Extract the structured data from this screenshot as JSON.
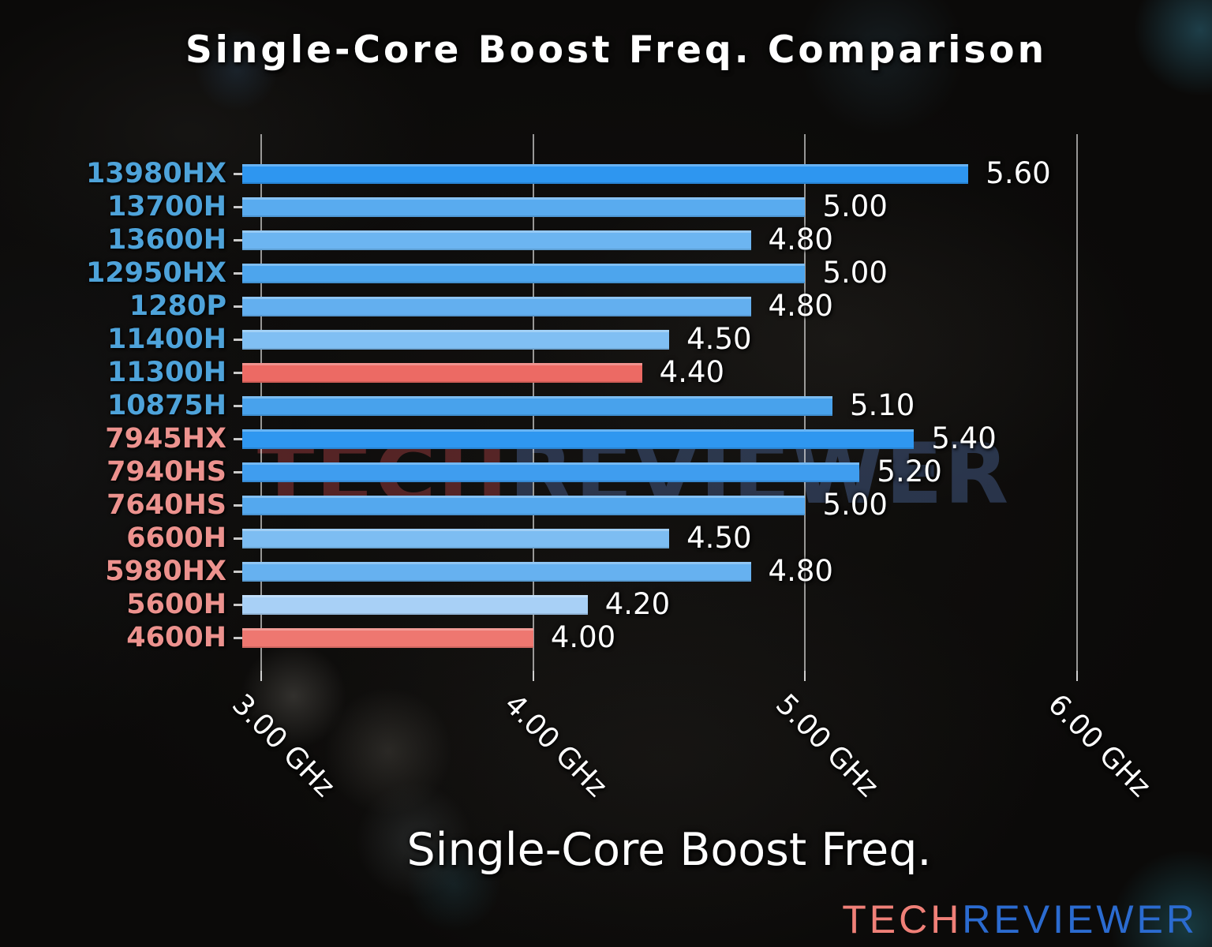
{
  "title": "Single-Core Boost Freq. Comparison",
  "watermark": {
    "part1": "TECH",
    "part2": "REVIEWER"
  },
  "logo": {
    "part1": "TECH",
    "part2": "REVIEWER",
    "part1_color": "#F08078",
    "part2_color": "#2B6BD0"
  },
  "chart_data": {
    "type": "bar",
    "orientation": "horizontal",
    "title": "Single-Core Boost Freq. Comparison",
    "xlabel": "Single-Core Boost Freq.",
    "ylabel": "",
    "grid": true,
    "xlim": [
      2.93,
      6.072
    ],
    "x_ticks": [
      {
        "value": 3.0,
        "label": "3.00 GHz"
      },
      {
        "value": 4.0,
        "label": "4.00 GHz"
      },
      {
        "value": 5.0,
        "label": "5.00 GHz"
      },
      {
        "value": 6.0,
        "label": "6.00 GHz"
      }
    ],
    "unit": "GHz",
    "categories": [
      "13980HX",
      "13700H",
      "13600H",
      "12950HX",
      "1280P",
      "11400H",
      "11300H",
      "10875H",
      "7945HX",
      "7940HS",
      "7640HS",
      "6600H",
      "5980HX",
      "5600H",
      "4600H"
    ],
    "values": [
      5.6,
      5.0,
      4.8,
      5.0,
      4.8,
      4.5,
      4.4,
      5.1,
      5.4,
      5.2,
      5.0,
      4.5,
      4.8,
      4.2,
      4.0
    ],
    "value_labels": [
      "5.60",
      "5.00",
      "4.80",
      "5.00",
      "4.80",
      "4.50",
      "4.40",
      "5.10",
      "5.40",
      "5.20",
      "5.00",
      "4.50",
      "4.80",
      "4.20",
      "4.00"
    ],
    "bar_colors": [
      "#2E96F0",
      "#59ABEF",
      "#6CB5F1",
      "#4DA5ED",
      "#63AFEF",
      "#80BFF3",
      "#EC6A64",
      "#48A2EC",
      "#2F97F0",
      "#3F9DEF",
      "#54A8EE",
      "#7DBDF2",
      "#66B1F0",
      "#A8D0F6",
      "#EE7770"
    ],
    "category_label_colors": [
      "#4EA3DA",
      "#4EA3DA",
      "#4EA3DA",
      "#4EA3DA",
      "#4EA3DA",
      "#4EA3DA",
      "#4EA3DA",
      "#4EA3DA",
      "#EC928E",
      "#EC928E",
      "#EC928E",
      "#EC928E",
      "#EC928E",
      "#EC928E",
      "#EC928E"
    ],
    "legend": null
  }
}
